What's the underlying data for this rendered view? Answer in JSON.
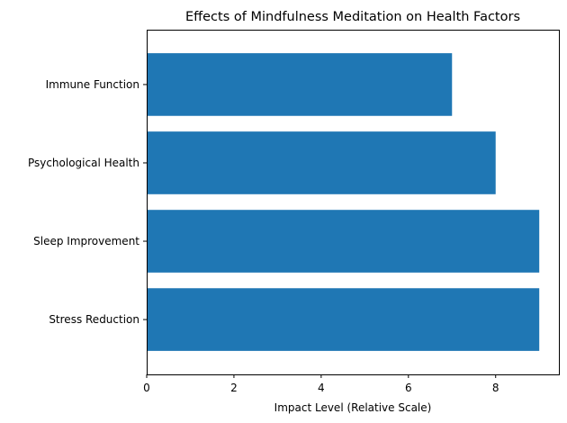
{
  "chart_data": {
    "type": "bar",
    "orientation": "horizontal",
    "title": "Effects of Mindfulness Meditation on Health Factors",
    "xlabel": "Impact Level (Relative Scale)",
    "ylabel": "",
    "categories": [
      "Stress Reduction",
      "Sleep Improvement",
      "Psychological Health",
      "Immune Function"
    ],
    "values": [
      9,
      9,
      8,
      7
    ],
    "xlim": [
      0,
      9.45
    ],
    "xticks": [
      0,
      2,
      4,
      6,
      8
    ],
    "grid": false,
    "bar_color": "#1f77b4"
  }
}
